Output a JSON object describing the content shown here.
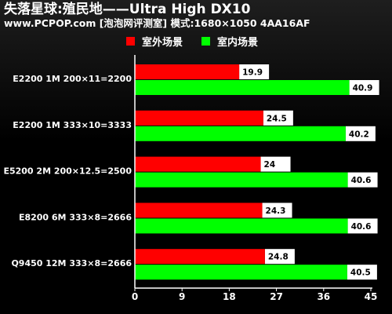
{
  "chart_data": {
    "type": "bar",
    "orientation": "horizontal",
    "title": "失落星球:殖民地——Ultra High DX10",
    "subtitle": "www.PCPOP.com [泡泡网评测室] 模式:1680×1050 4AA16AF",
    "categories": [
      "E2200 1M 200×11=2200",
      "E2200 1M 333×10=3333",
      "E5200 2M  200×12.5=2500",
      "E8200 6M  333×8=2666",
      "Q9450 12M 333×8=2666"
    ],
    "series": [
      {
        "name": "室外场景",
        "color": "#ff0000",
        "values": [
          19.9,
          24.5,
          24,
          24.3,
          24.8
        ]
      },
      {
        "name": "室内场景",
        "color": "#00ff00",
        "values": [
          40.9,
          40.2,
          40.6,
          40.6,
          40.5
        ]
      }
    ],
    "xlim": [
      0,
      45
    ],
    "xticks": [
      0,
      9,
      18,
      27,
      36,
      45
    ],
    "grid": false,
    "legend": "top"
  }
}
